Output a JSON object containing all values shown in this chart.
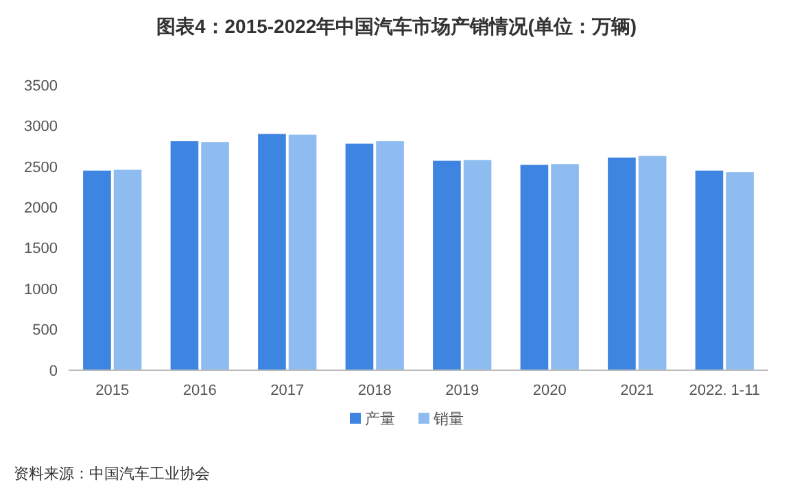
{
  "chart_data": {
    "type": "bar",
    "title": "图表4：2015-2022年中国汽车市场产销情况(单位：万辆)",
    "categories": [
      "2015",
      "2016",
      "2017",
      "2018",
      "2019",
      "2020",
      "2021",
      "2022. 1-11"
    ],
    "series": [
      {
        "name": "产量",
        "color": "#3d85e0",
        "values": [
          2450,
          2810,
          2900,
          2780,
          2570,
          2520,
          2610,
          2450
        ]
      },
      {
        "name": "销量",
        "color": "#8ebcf0",
        "values": [
          2460,
          2800,
          2890,
          2810,
          2580,
          2530,
          2630,
          2430
        ]
      }
    ],
    "ylim": [
      0,
      3500
    ],
    "yticks": [
      0,
      500,
      1000,
      1500,
      2000,
      2500,
      3000,
      3500
    ],
    "grid": false,
    "legend": "bottom",
    "annotations": [
      "资料来源：中国汽车工业协会"
    ]
  }
}
